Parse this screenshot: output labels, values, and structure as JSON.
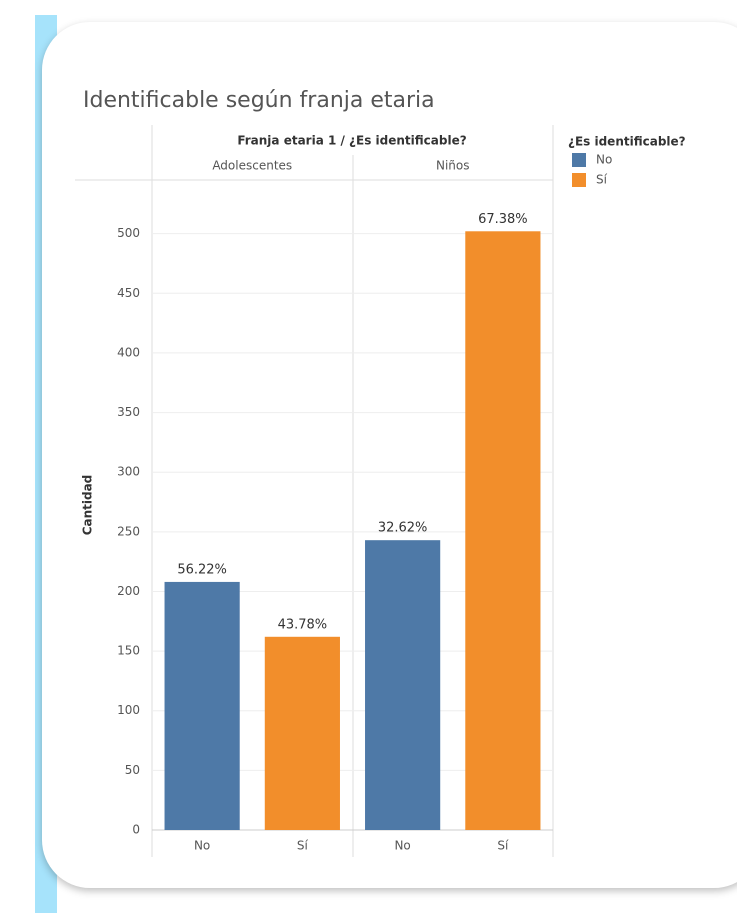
{
  "chart_data": {
    "type": "bar",
    "title": "Identificable según franja etaria",
    "panel_header": "Franja etaria 1 / ¿Es identificable?",
    "legend_title": "¿Es identificable?",
    "y_label": "Cantidad",
    "groups": [
      "Adolescentes",
      "Niños"
    ],
    "series": [
      {
        "name": "No",
        "color": "#4e79a7",
        "values": [
          208,
          243
        ],
        "value_labels": [
          "56.22%",
          "32.62%"
        ]
      },
      {
        "name": "Sí",
        "color": "#f28e2b",
        "values": [
          162,
          502
        ],
        "value_labels": [
          "43.78%",
          "67.38%"
        ]
      }
    ],
    "ylim": [
      0,
      545
    ],
    "yticks": [
      0,
      50,
      100,
      150,
      200,
      250,
      300,
      350,
      400,
      450,
      500
    ],
    "grid": true
  }
}
